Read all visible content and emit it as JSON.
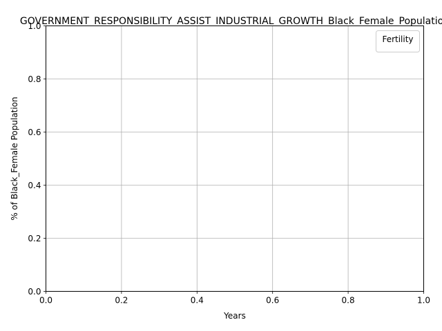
{
  "chart_data": {
    "type": "line",
    "title": "GOVERNMENT_RESPONSIBILITY_ASSIST_INDUSTRIAL_GROWTH_Black_Female_Population",
    "xlabel": "Years",
    "ylabel": "% of Black_Female Population",
    "xlim": [
      0.0,
      1.0
    ],
    "ylim": [
      0.0,
      1.0
    ],
    "x_ticks": [
      "0.0",
      "0.2",
      "0.4",
      "0.6",
      "0.8",
      "1.0"
    ],
    "y_ticks": [
      "0.0",
      "0.2",
      "0.4",
      "0.6",
      "0.8",
      "1.0"
    ],
    "grid": true,
    "legend": {
      "title": "Fertility",
      "placement": "top-right",
      "entries": []
    },
    "series": []
  },
  "colors": {
    "grid": "#b0b0b0",
    "axis": "#000000",
    "legend_border": "#cccccc"
  }
}
